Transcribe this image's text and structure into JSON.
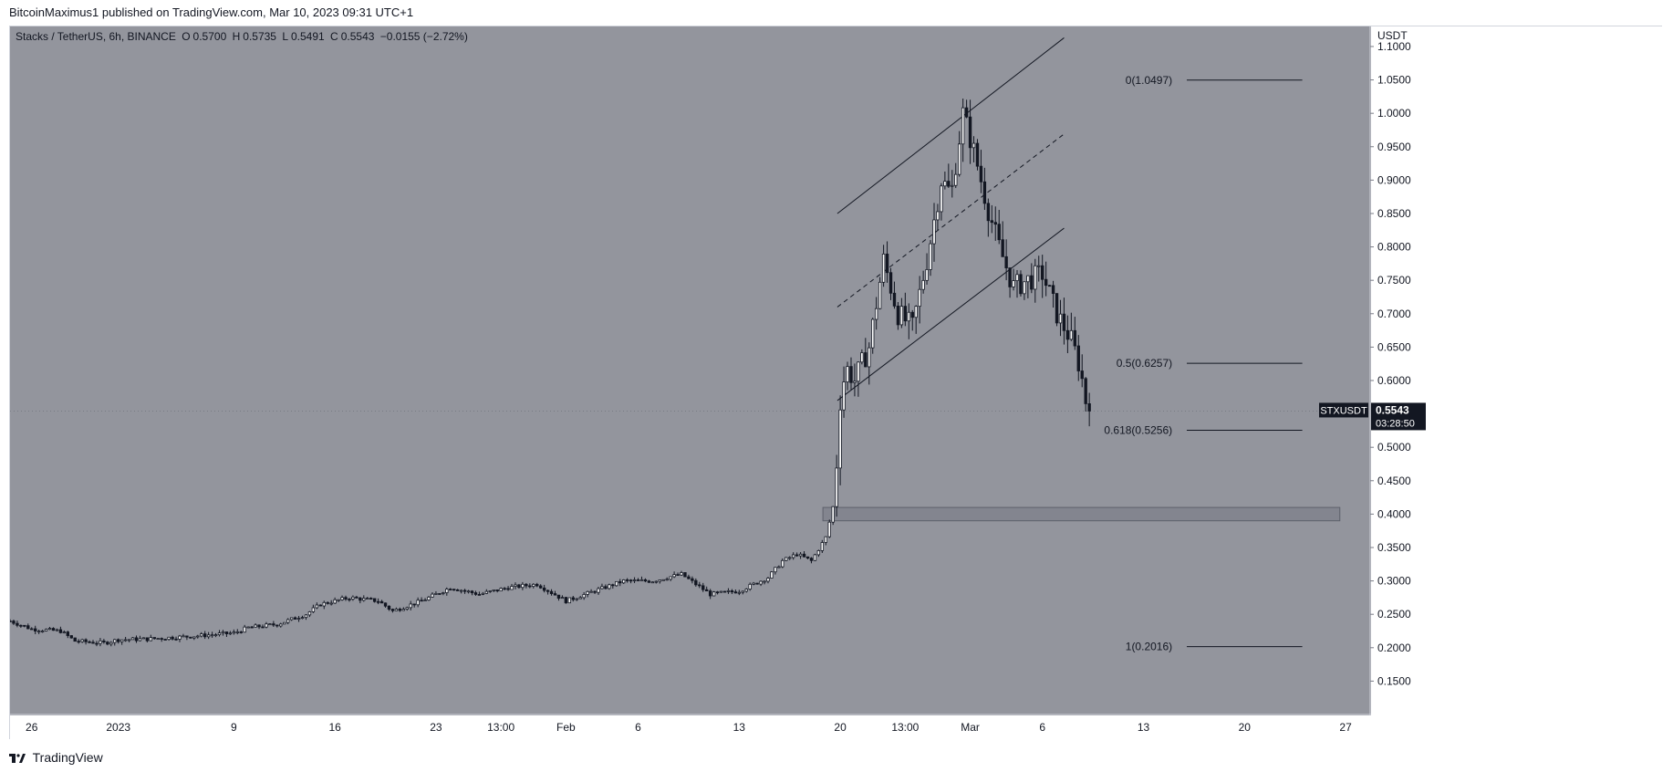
{
  "header": {
    "publisher_text": "BitcoinMaximus1 published on TradingView.com, Mar 10, 2023 09:31 UTC+1"
  },
  "legend": {
    "symbol_desc": "Stacks / TetherUS, 6h, BINANCE",
    "o_label": "O",
    "o_value": "0.5700",
    "h_label": "H",
    "h_value": "0.5735",
    "l_label": "L",
    "l_value": "0.5491",
    "c_label": "C",
    "c_value": "0.5543",
    "change": "−0.0155 (−2.72%)"
  },
  "price_tag": {
    "symbol": "STXUSDT",
    "price": "0.5543",
    "countdown": "03:28:50",
    "price_value": 0.5543
  },
  "footer": {
    "brand": "TradingView"
  },
  "chart_data": {
    "type": "candlestick",
    "title": "Stacks / TetherUS, 6h, BINANCE",
    "y_axis_label": "USDT",
    "ylim": [
      0.1,
      1.13
    ],
    "y_ticks": [
      {
        "v": 1.1,
        "label": "1.1000"
      },
      {
        "v": 1.05,
        "label": "1.0500"
      },
      {
        "v": 1.0,
        "label": "1.0000"
      },
      {
        "v": 0.95,
        "label": "0.9500"
      },
      {
        "v": 0.9,
        "label": "0.9000"
      },
      {
        "v": 0.85,
        "label": "0.8500"
      },
      {
        "v": 0.8,
        "label": "0.8000"
      },
      {
        "v": 0.75,
        "label": "0.7500"
      },
      {
        "v": 0.7,
        "label": "0.7000"
      },
      {
        "v": 0.65,
        "label": "0.6500"
      },
      {
        "v": 0.6,
        "label": "0.6000"
      },
      {
        "v": 0.5,
        "label": "0.5000"
      },
      {
        "v": 0.45,
        "label": "0.4500"
      },
      {
        "v": 0.4,
        "label": "0.4000"
      },
      {
        "v": 0.35,
        "label": "0.3500"
      },
      {
        "v": 0.3,
        "label": "0.3000"
      },
      {
        "v": 0.25,
        "label": "0.2500"
      },
      {
        "v": 0.2,
        "label": "0.2000"
      },
      {
        "v": 0.15,
        "label": "0.1500"
      }
    ],
    "x_ticks": [
      {
        "day": 0,
        "label": "26"
      },
      {
        "day": 6,
        "label": "2023"
      },
      {
        "day": 14,
        "label": "9"
      },
      {
        "day": 21,
        "label": "16"
      },
      {
        "day": 28,
        "label": "23"
      },
      {
        "day": 32.5,
        "label": "13:00"
      },
      {
        "day": 37,
        "label": "Feb"
      },
      {
        "day": 42,
        "label": "6"
      },
      {
        "day": 49,
        "label": "13"
      },
      {
        "day": 56,
        "label": "20"
      },
      {
        "day": 60.5,
        "label": "13:00"
      },
      {
        "day": 65,
        "label": "Mar"
      },
      {
        "day": 70,
        "label": "6"
      },
      {
        "day": 77,
        "label": "13"
      },
      {
        "day": 84,
        "label": "20"
      },
      {
        "day": 91,
        "label": "27"
      }
    ],
    "xlim_days": [
      -1.5,
      92.7
    ],
    "price_path": [
      {
        "day": -1.5,
        "p": 0.24
      },
      {
        "day": 0,
        "p": 0.228
      },
      {
        "day": 2,
        "p": 0.225
      },
      {
        "day": 3,
        "p": 0.21
      },
      {
        "day": 5,
        "p": 0.207
      },
      {
        "day": 6,
        "p": 0.212
      },
      {
        "day": 8,
        "p": 0.213
      },
      {
        "day": 11,
        "p": 0.217
      },
      {
        "day": 14,
        "p": 0.222
      },
      {
        "day": 15,
        "p": 0.23
      },
      {
        "day": 17,
        "p": 0.235
      },
      {
        "day": 19,
        "p": 0.25
      },
      {
        "day": 20,
        "p": 0.265
      },
      {
        "day": 22,
        "p": 0.275
      },
      {
        "day": 24,
        "p": 0.27
      },
      {
        "day": 25,
        "p": 0.255
      },
      {
        "day": 27,
        "p": 0.27
      },
      {
        "day": 29,
        "p": 0.29
      },
      {
        "day": 31,
        "p": 0.28
      },
      {
        "day": 33,
        "p": 0.29
      },
      {
        "day": 35,
        "p": 0.295
      },
      {
        "day": 37,
        "p": 0.27
      },
      {
        "day": 39,
        "p": 0.285
      },
      {
        "day": 41,
        "p": 0.3
      },
      {
        "day": 43,
        "p": 0.3
      },
      {
        "day": 45,
        "p": 0.31
      },
      {
        "day": 47,
        "p": 0.28
      },
      {
        "day": 49,
        "p": 0.285
      },
      {
        "day": 51,
        "p": 0.305
      },
      {
        "day": 52,
        "p": 0.33
      },
      {
        "day": 53,
        "p": 0.34
      },
      {
        "day": 54,
        "p": 0.33
      },
      {
        "day": 55,
        "p": 0.365
      },
      {
        "day": 55.6,
        "p": 0.42
      },
      {
        "day": 56,
        "p": 0.57
      },
      {
        "day": 56.4,
        "p": 0.62
      },
      {
        "day": 57,
        "p": 0.6
      },
      {
        "day": 58,
        "p": 0.65
      },
      {
        "day": 59,
        "p": 0.78
      },
      {
        "day": 60,
        "p": 0.7
      },
      {
        "day": 61,
        "p": 0.68
      },
      {
        "day": 62,
        "p": 0.78
      },
      {
        "day": 63,
        "p": 0.9
      },
      {
        "day": 63.7,
        "p": 0.88
      },
      {
        "day": 64.5,
        "p": 1.0
      },
      {
        "day": 65.3,
        "p": 0.94
      },
      {
        "day": 66.2,
        "p": 0.86
      },
      {
        "day": 67,
        "p": 0.8
      },
      {
        "day": 68,
        "p": 0.74
      },
      {
        "day": 69,
        "p": 0.75
      },
      {
        "day": 70,
        "p": 0.76
      },
      {
        "day": 71,
        "p": 0.7
      },
      {
        "day": 72,
        "p": 0.66
      },
      {
        "day": 72.6,
        "p": 0.62
      },
      {
        "day": 73,
        "p": 0.57
      },
      {
        "day": 73.4,
        "p": 0.555
      }
    ],
    "demand_zone": {
      "x0_day": 54.8,
      "x1_day": 90.6,
      "y0": 0.39,
      "y1": 0.41
    },
    "channel": {
      "x0_day": 55.8,
      "x1_day": 71.5,
      "upper": {
        "y0": 0.85,
        "y1": 1.113
      },
      "middle": {
        "y0": 0.71,
        "y1": 0.969
      },
      "lower": {
        "y0": 0.57,
        "y1": 0.828
      }
    },
    "fib_levels": [
      {
        "ratio_label": "0(1.0497)",
        "value": 1.0497
      },
      {
        "ratio_label": "0.5(0.6257)",
        "value": 0.6257
      },
      {
        "ratio_label": "0.618(0.5256)",
        "value": 0.5256
      },
      {
        "ratio_label": "1(0.2016)",
        "value": 0.2016
      }
    ],
    "fib_x_range_days": [
      80,
      88
    ],
    "fib_label_end_day": 79
  }
}
